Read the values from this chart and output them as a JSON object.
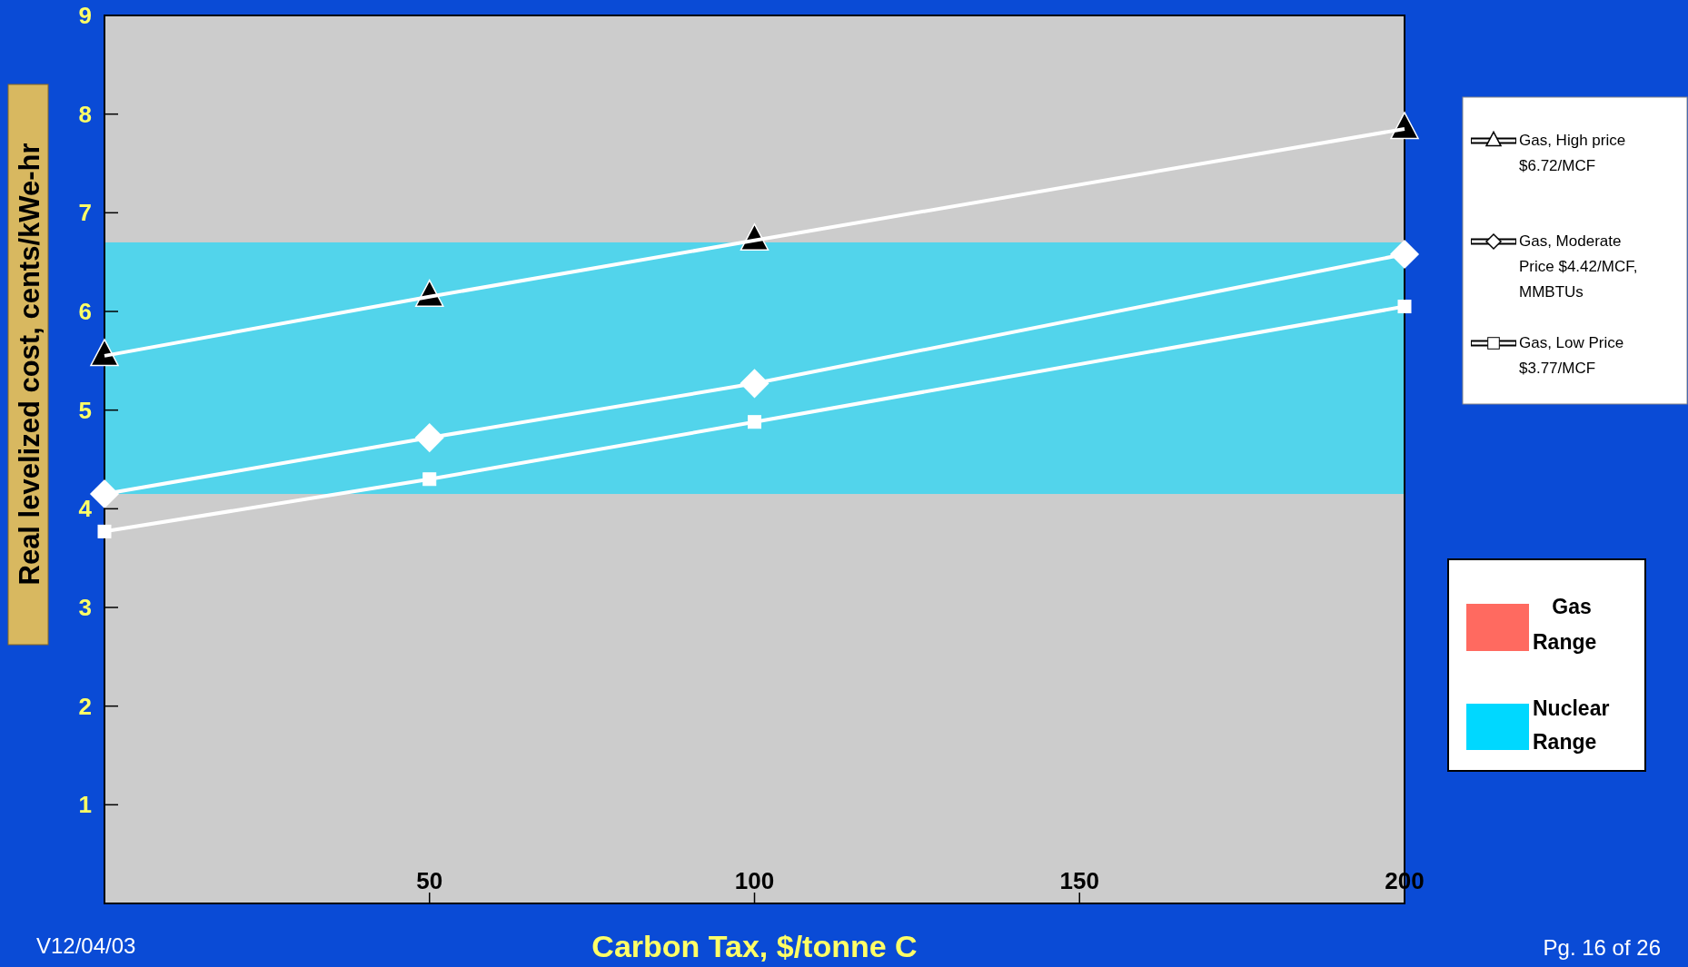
{
  "chart_data": {
    "type": "line",
    "xlabel": "Carbon Tax, $/tonne C",
    "ylabel": "Real levelized cost, cents/kWe-hr",
    "x": [
      0,
      50,
      100,
      200
    ],
    "xlim": [
      0,
      200
    ],
    "xticks": [
      50,
      100,
      150,
      200
    ],
    "ylim": [
      0,
      9
    ],
    "yticks": [
      1,
      2,
      3,
      4,
      5,
      6,
      7,
      8,
      9
    ],
    "series": [
      {
        "name": "Gas, High price $6.72/MCF",
        "color": "#ffffff",
        "marker": "triangle",
        "values": [
          5.55,
          6.15,
          6.72,
          7.85
        ]
      },
      {
        "name": "Gas, Moderate Price $4.42/MCF, MMBTUs",
        "color": "#ffffff",
        "marker": "diamond",
        "values": [
          4.15,
          4.72,
          5.27,
          6.58
        ]
      },
      {
        "name": "Gas, Low Price $3.77/MCF",
        "color": "#ffffff",
        "marker": "square",
        "values": [
          3.77,
          4.3,
          4.88,
          6.05
        ]
      }
    ],
    "bands": [
      {
        "axis": "y",
        "from": 4.15,
        "to": 6.7,
        "label": "Nuclear Range",
        "color": "#00d8ff"
      }
    ],
    "legend": "right",
    "annotations": [
      "Gas Range",
      "V12/04/03",
      "Pg. 16 of 26"
    ]
  }
}
